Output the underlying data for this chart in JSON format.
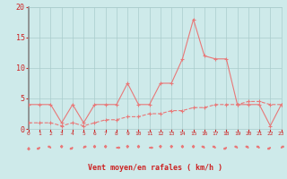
{
  "hours": [
    0,
    1,
    2,
    3,
    4,
    5,
    6,
    7,
    8,
    9,
    10,
    11,
    12,
    13,
    14,
    15,
    16,
    17,
    18,
    19,
    20,
    21,
    22,
    23
  ],
  "wind_gusts": [
    4,
    4,
    4,
    1,
    4,
    1,
    4,
    4,
    4,
    7.5,
    4,
    4,
    7.5,
    7.5,
    11.5,
    18,
    12,
    11.5,
    11.5,
    4,
    4,
    4,
    0.5,
    4
  ],
  "wind_mean": [
    1,
    1,
    1,
    0.5,
    1,
    0.5,
    1,
    1.5,
    1.5,
    2,
    2,
    2.5,
    2.5,
    3,
    3,
    3.5,
    3.5,
    4,
    4,
    4,
    4.5,
    4.5,
    4,
    4
  ],
  "bg_color": "#ceeaea",
  "grid_color": "#aacccc",
  "line_color": "#e87878",
  "axis_label_color": "#cc2222",
  "tick_color": "#cc2222",
  "xlabel": "Vent moyen/en rafales ( km/h )",
  "ylim": [
    0,
    20
  ],
  "xlim": [
    0,
    23
  ],
  "yticks": [
    0,
    5,
    10,
    15,
    20
  ],
  "xticks": [
    0,
    1,
    2,
    3,
    4,
    5,
    6,
    7,
    8,
    9,
    10,
    11,
    12,
    13,
    14,
    15,
    16,
    17,
    18,
    19,
    20,
    21,
    22,
    23
  ],
  "arrow_angles": [
    0,
    -45,
    -135,
    180,
    -45,
    135,
    180,
    180,
    90,
    180,
    180,
    90,
    180,
    180,
    180,
    180,
    -135,
    -135,
    -45,
    -135,
    -135,
    -135,
    -45,
    135
  ]
}
